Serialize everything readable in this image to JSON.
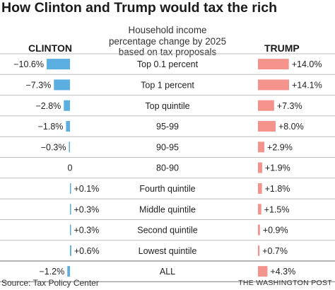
{
  "header": {
    "title": "How Clinton and Trump would tax the rich",
    "subtitle_lines": [
      "Household income",
      "percentage change by 2025",
      "based on tax proposals"
    ],
    "left_label": "CLINTON",
    "right_label": "TRUMP"
  },
  "footer": {
    "source": "Source: Tax Policy Center",
    "credit": "THE WASHINGTON POST"
  },
  "colors": {
    "clinton": "#5aaee0",
    "trump": "#f4928c",
    "divider": "#bbbbbb",
    "text": "#222222"
  },
  "chart_data": {
    "type": "bar",
    "categories": [
      "Top 0.1 percent",
      "Top 1 percent",
      "Top quintile",
      "95-99",
      "90-95",
      "80-90",
      "Fourth quintile",
      "Middle quintile",
      "Second quintile",
      "Lowest quintile",
      "ALL"
    ],
    "series": [
      {
        "name": "CLINTON",
        "values": [
          -10.6,
          -7.3,
          -2.8,
          -1.8,
          -0.3,
          0,
          0.1,
          0.3,
          0.3,
          0.6,
          -1.2
        ],
        "labels": [
          "−10.6%",
          "−7.3%",
          "−2.8%",
          "−1.8%",
          "−0.3%",
          "0",
          "+0.1%",
          "+0.3%",
          "+0.3%",
          "+0.6%",
          "−1.2%"
        ]
      },
      {
        "name": "TRUMP",
        "values": [
          14.0,
          14.1,
          7.3,
          8.0,
          2.9,
          1.9,
          1.8,
          1.5,
          0.9,
          0.7,
          4.3
        ],
        "labels": [
          "+14.0%",
          "+14.1%",
          "+7.3%",
          "+8.0%",
          "+2.9%",
          "+1.9%",
          "+1.8%",
          "+1.5%",
          "+0.9%",
          "+0.7%",
          "+4.3%"
        ]
      }
    ],
    "grid": false,
    "legend": "top"
  }
}
